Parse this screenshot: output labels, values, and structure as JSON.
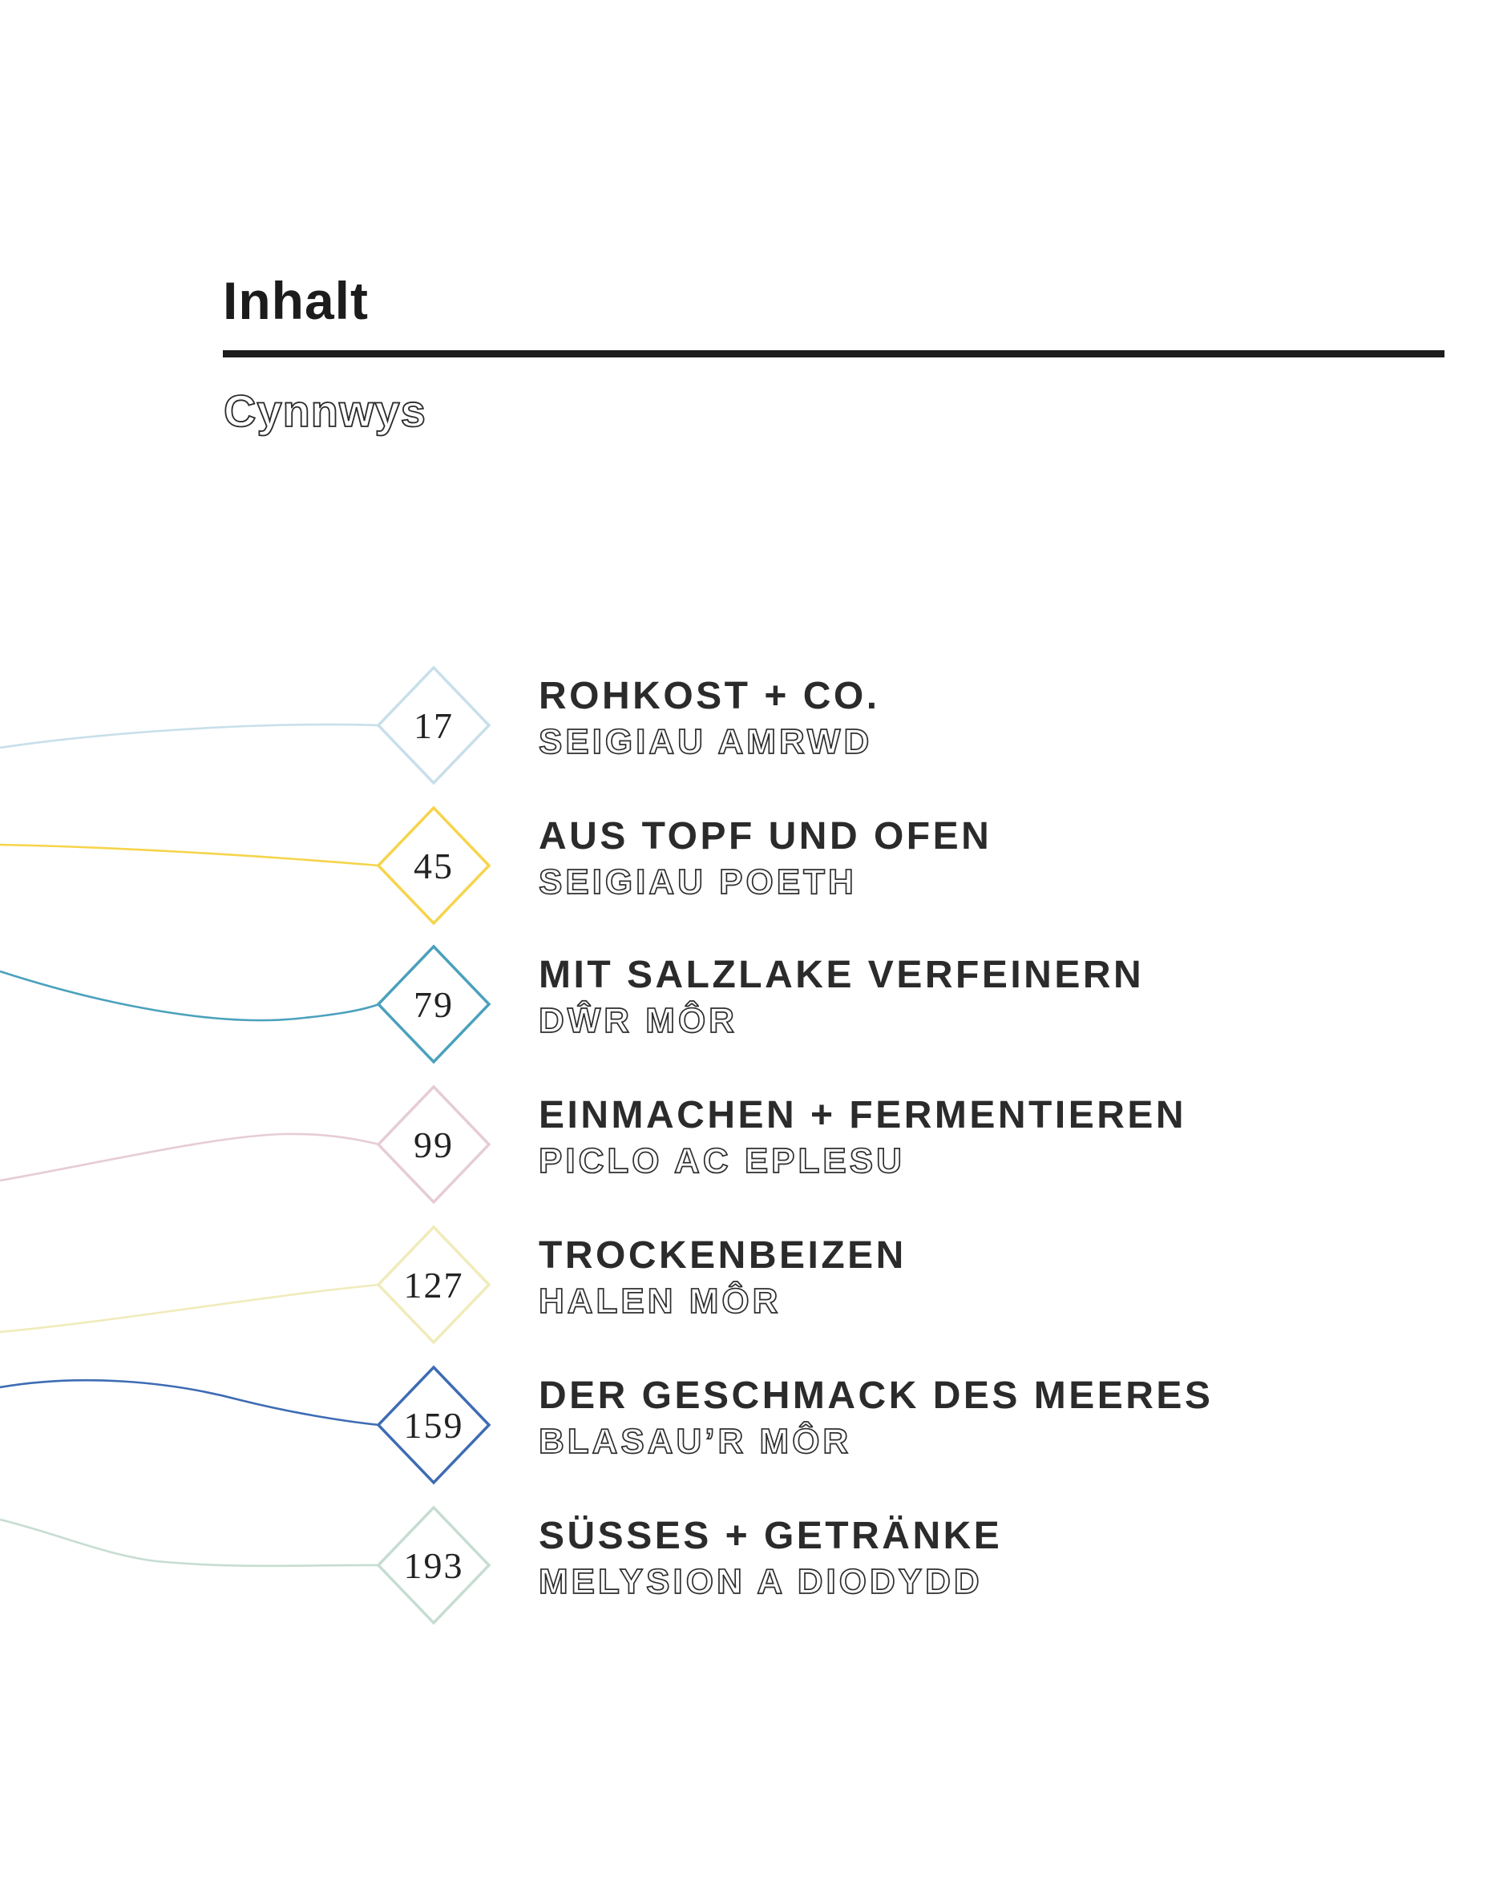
{
  "header": {
    "title": "Inhalt",
    "subtitle": "Cynnwys"
  },
  "toc": {
    "entries": [
      {
        "page": "17",
        "title": "ROHKOST + CO.",
        "subtitle": "SEIGIAU AMRWD",
        "color": "#c8dfea"
      },
      {
        "page": "45",
        "title": "AUS TOPF UND OFEN",
        "subtitle": "SEIGIAU POETH",
        "color": "#f6d44b"
      },
      {
        "page": "79",
        "title": "MIT SALZLAKE VERFEINERN",
        "subtitle": "DŴR MÔR",
        "color": "#4aa1bc"
      },
      {
        "page": "99",
        "title": "EINMACHEN + FERMENTIEREN",
        "subtitle": "PICLO AC EPLESU",
        "color": "#e6ccd6"
      },
      {
        "page": "127",
        "title": "TROCKENBEIZEN",
        "subtitle": "HALEN MÔR",
        "color": "#f0ebba"
      },
      {
        "page": "159",
        "title": "DER GESCHMACK DES MEERES",
        "subtitle": "BLASAU’R MÔR",
        "color": "#3e6cb4"
      },
      {
        "page": "193",
        "title": "SÜSSES + GETRÄNKE",
        "subtitle": "MELYSION A DIODYDD",
        "color": "#c6ddd1"
      }
    ],
    "ink_color": "#2b2b2b"
  }
}
